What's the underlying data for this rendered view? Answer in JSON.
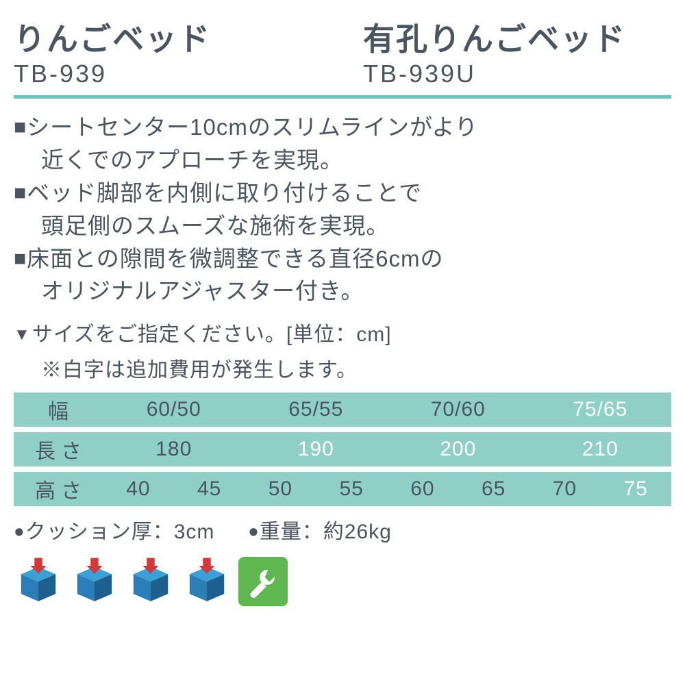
{
  "colors": {
    "text": "#4a5560",
    "teal": "#6bc4b8",
    "teal_row": "#8fd0c6",
    "white": "#ffffff",
    "box_top": "#3aa0d8",
    "box_left": "#2b7fb8",
    "box_right": "#1d5f8f",
    "arrow": "#d63838",
    "wrench_bg": "#5fb84f"
  },
  "products": [
    {
      "name": "りんごベッド",
      "code": "TB-939"
    },
    {
      "name": "有孔りんごベッド",
      "code": "TB-939U"
    }
  ],
  "features": [
    {
      "l1": "シートセンター10cmのスリムラインがより",
      "l2": "近くでのアプローチを実現。"
    },
    {
      "l1": "ベッド脚部を内側に取り付けることで",
      "l2": "頭足側のスムーズな施術を実現。"
    },
    {
      "l1": "床面との隙間を微調整できる直径6cmの",
      "l2": "オリジナルアジャスター付き。"
    }
  ],
  "size_instruction": "サイズをご指定ください。[単位：cm]",
  "note": "※白字は追加費用が発生します。",
  "table": {
    "rows": [
      {
        "label": "幅",
        "cells": [
          {
            "v": "60/50",
            "white": false
          },
          {
            "v": "65/55",
            "white": false
          },
          {
            "v": "70/60",
            "white": false
          },
          {
            "v": "75/65",
            "white": true
          }
        ]
      },
      {
        "label": "長さ",
        "cells": [
          {
            "v": "180",
            "white": false
          },
          {
            "v": "190",
            "white": true
          },
          {
            "v": "200",
            "white": true
          },
          {
            "v": "210",
            "white": true
          }
        ]
      },
      {
        "label": "高さ",
        "cells": [
          {
            "v": "40",
            "white": false
          },
          {
            "v": "45",
            "white": false
          },
          {
            "v": "50",
            "white": false
          },
          {
            "v": "55",
            "white": false
          },
          {
            "v": "60",
            "white": false
          },
          {
            "v": "65",
            "white": false
          },
          {
            "v": "70",
            "white": false
          },
          {
            "v": "75",
            "white": true
          }
        ]
      }
    ]
  },
  "specs": {
    "cushion_label": "クッション厚：",
    "cushion_value": "3cm",
    "weight_label": "重量：",
    "weight_value": "約26kg"
  },
  "icon_count": 4
}
